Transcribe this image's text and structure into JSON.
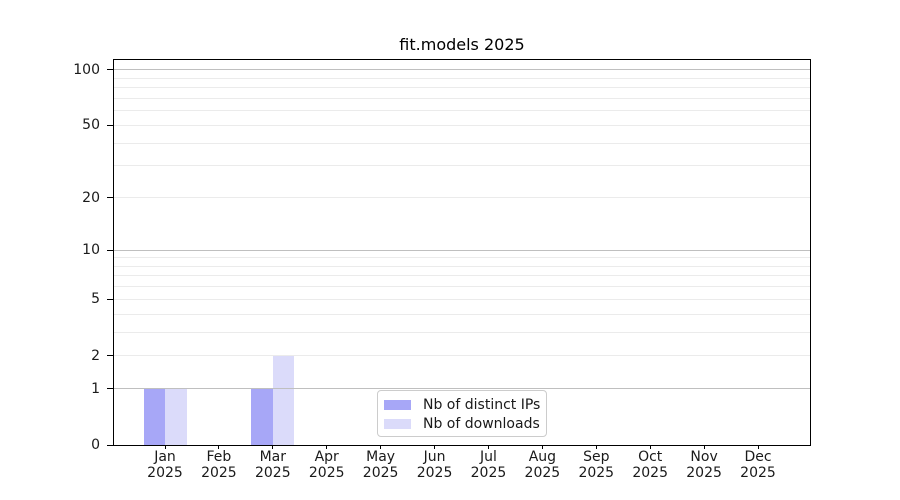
{
  "chart_data": {
    "type": "bar",
    "title": "fit.models 2025",
    "categories": [
      "Jan",
      "Feb",
      "Mar",
      "Apr",
      "May",
      "Jun",
      "Jul",
      "Aug",
      "Sep",
      "Oct",
      "Nov",
      "Dec"
    ],
    "year_label": "2025",
    "series": [
      {
        "name": "Nb of distinct IPs",
        "color": "#a7a7f7",
        "values": [
          1,
          0,
          1,
          0,
          0,
          0,
          0,
          0,
          0,
          0,
          0,
          0
        ]
      },
      {
        "name": "Nb of downloads",
        "color": "#dbdbfa",
        "values": [
          1,
          0,
          2,
          0,
          0,
          0,
          0,
          0,
          0,
          0,
          0,
          0
        ]
      }
    ],
    "y_axis": {
      "scale": "log1p",
      "tick_values": [
        0,
        1,
        2,
        5,
        10,
        20,
        50,
        100
      ],
      "max_value": 113
    },
    "grid": {
      "major_values": [
        1,
        10,
        100
      ],
      "minor_values": [
        2,
        3,
        4,
        5,
        6,
        7,
        8,
        9,
        20,
        30,
        40,
        50,
        60,
        70,
        80,
        90
      ],
      "major_color": "#bfbfbf",
      "minor_color": "#ebebeb"
    },
    "legend": {
      "position": "bottom-center"
    },
    "xlabel": "",
    "ylabel": ""
  },
  "colors": {
    "background": "#ffffff",
    "spine": "#000000",
    "text": "#1a1a1a"
  }
}
